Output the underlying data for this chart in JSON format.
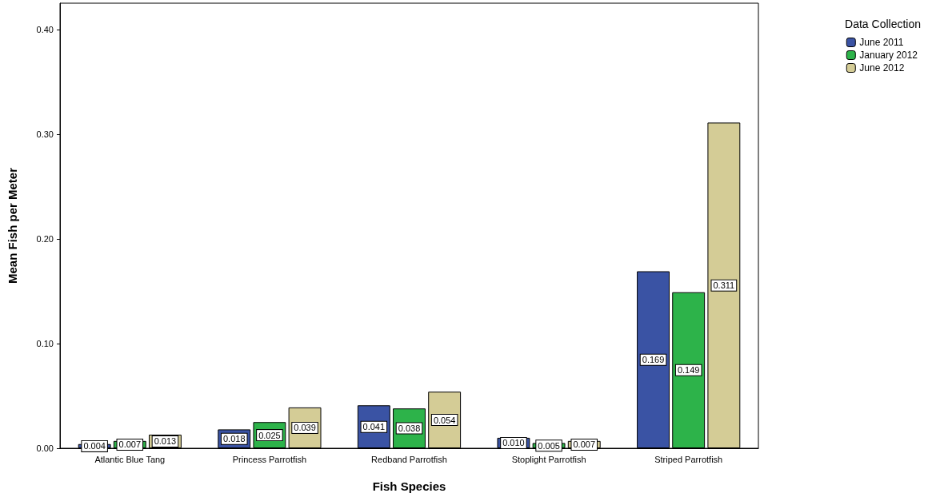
{
  "chart_data": {
    "type": "bar",
    "xlabel": "Fish Species",
    "ylabel": "Mean Fish per Meter",
    "legend_title": "Data Collection",
    "categories": [
      "Atlantic Blue Tang",
      "Princess Parrotfish",
      "Redband Parrotfish",
      "Stoplight Parrotfish",
      "Striped Parrotfish"
    ],
    "series": [
      {
        "name": "June 2011",
        "color": "#3a53a4",
        "values": [
          0.004,
          0.018,
          0.041,
          0.01,
          0.169
        ],
        "value_labels": [
          "0.004",
          "0.018",
          "0.041",
          "0.010",
          "0.169"
        ]
      },
      {
        "name": "January 2012",
        "color": "#2db34a",
        "values": [
          0.007,
          0.025,
          0.038,
          0.005,
          0.149
        ],
        "value_labels": [
          "0.007",
          "0.025",
          "0.038",
          "0.005",
          "0.149"
        ]
      },
      {
        "name": "June 2012",
        "color": "#d4cc96",
        "values": [
          0.013,
          0.039,
          0.054,
          0.007,
          0.311
        ],
        "value_labels": [
          "0.013",
          "0.039",
          "0.054",
          "0.007",
          "0.311"
        ]
      }
    ],
    "ylim": [
      0,
      0.425
    ],
    "yticks": [
      {
        "value": 0,
        "label": "0.00"
      },
      {
        "value": 0.1,
        "label": "0.10"
      },
      {
        "value": 0.2,
        "label": "0.20"
      },
      {
        "value": 0.3,
        "label": "0.30"
      },
      {
        "value": 0.4,
        "label": "0.40"
      }
    ],
    "grid": false,
    "legend": "top right"
  }
}
